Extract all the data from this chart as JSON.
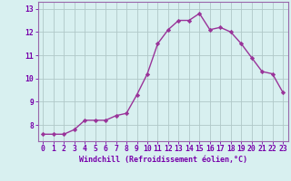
{
  "x": [
    0,
    1,
    2,
    3,
    4,
    5,
    6,
    7,
    8,
    9,
    10,
    11,
    12,
    13,
    14,
    15,
    16,
    17,
    18,
    19,
    20,
    21,
    22,
    23
  ],
  "y": [
    7.6,
    7.6,
    7.6,
    7.8,
    8.2,
    8.2,
    8.2,
    8.4,
    8.5,
    9.3,
    10.2,
    11.5,
    12.1,
    12.5,
    12.5,
    12.8,
    12.1,
    12.2,
    12.0,
    11.5,
    10.9,
    10.3,
    10.2,
    9.4
  ],
  "line_color": "#993399",
  "marker": "D",
  "markersize": 2.2,
  "linewidth": 1.0,
  "bg_color": "#d8f0f0",
  "grid_color": "#b0c8c8",
  "xlabel": "Windchill (Refroidissement éolien,°C)",
  "ylabel": "",
  "xlim": [
    -0.5,
    23.5
  ],
  "ylim": [
    7.3,
    13.3
  ],
  "yticks": [
    8,
    9,
    10,
    11,
    12,
    13
  ],
  "xticks": [
    0,
    1,
    2,
    3,
    4,
    5,
    6,
    7,
    8,
    9,
    10,
    11,
    12,
    13,
    14,
    15,
    16,
    17,
    18,
    19,
    20,
    21,
    22,
    23
  ],
  "xlabel_color": "#7700aa",
  "tick_color": "#7700aa",
  "label_fontsize": 6.0,
  "tick_fontsize": 5.8,
  "spine_color": "#9966aa"
}
